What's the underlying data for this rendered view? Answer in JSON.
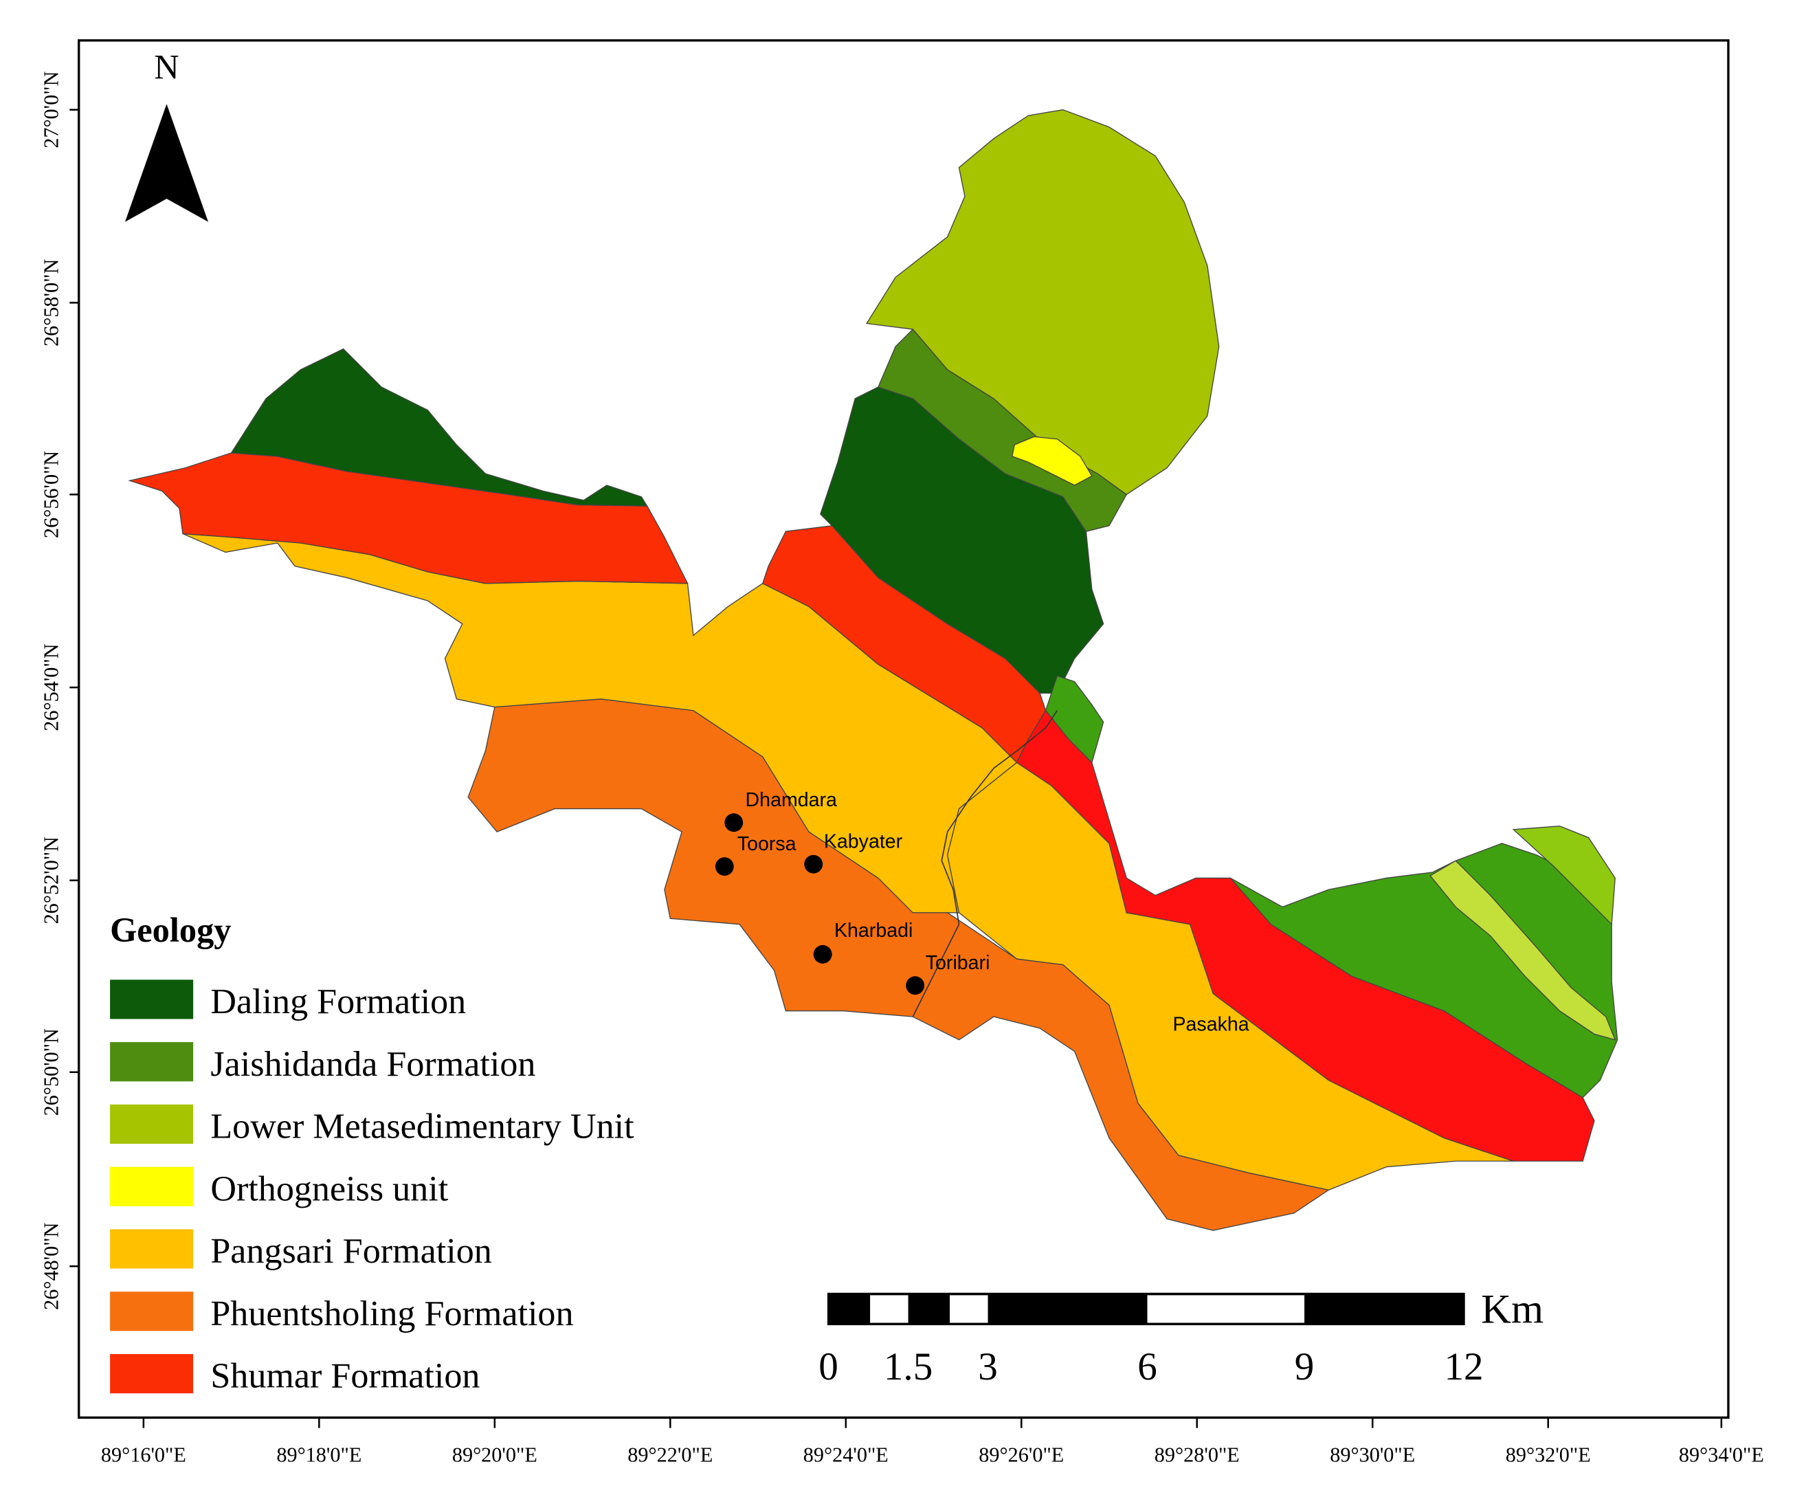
{
  "north_arrow": {
    "label": "N"
  },
  "legend": {
    "title": "Geology",
    "items": [
      {
        "label": "Daling Formation",
        "color": "#0c5a0a"
      },
      {
        "label": "Jaishidanda Formation",
        "color": "#4e8d10"
      },
      {
        "label": "Lower Metasedimentary Unit",
        "color": "#a6c400"
      },
      {
        "label": "Orthogneiss unit",
        "color": "#ffff00"
      },
      {
        "label": "Pangsari Formation",
        "color": "#ffc000"
      },
      {
        "label": "Phuentsholing Formation",
        "color": "#f77010"
      },
      {
        "label": "Shumar Formation",
        "color": "#fb2d04"
      }
    ]
  },
  "extra_colors": {
    "jaishidanda_bright": "#3fa010",
    "lower_meta_light": "#c3e03a",
    "shumar_bright": "#ff1010"
  },
  "places": [
    {
      "name": "Dhamdara"
    },
    {
      "name": "Toorsa"
    },
    {
      "name": "Kabyater"
    },
    {
      "name": "Kharbadi"
    },
    {
      "name": "Toribari"
    },
    {
      "name": "Pasakha"
    }
  ],
  "scale_bar": {
    "unit": "Km",
    "labels": [
      "0",
      "1.5",
      "3",
      "6",
      "9",
      "12"
    ]
  },
  "lat_labels": [
    "27°0'0\"N",
    "26°58'0\"N",
    "26°56'0\"N",
    "26°54'0\"N",
    "26°52'0\"N",
    "26°50'0\"N",
    "26°48'0\"N"
  ],
  "lon_labels": [
    "89°16'0\"E",
    "89°18'0\"E",
    "89°20'0\"E",
    "89°22'0\"E",
    "89°24'0\"E",
    "89°26'0\"E",
    "89°28'0\"E",
    "89°30'0\"E",
    "89°32'0\"E",
    "89°34'0\"E"
  ]
}
